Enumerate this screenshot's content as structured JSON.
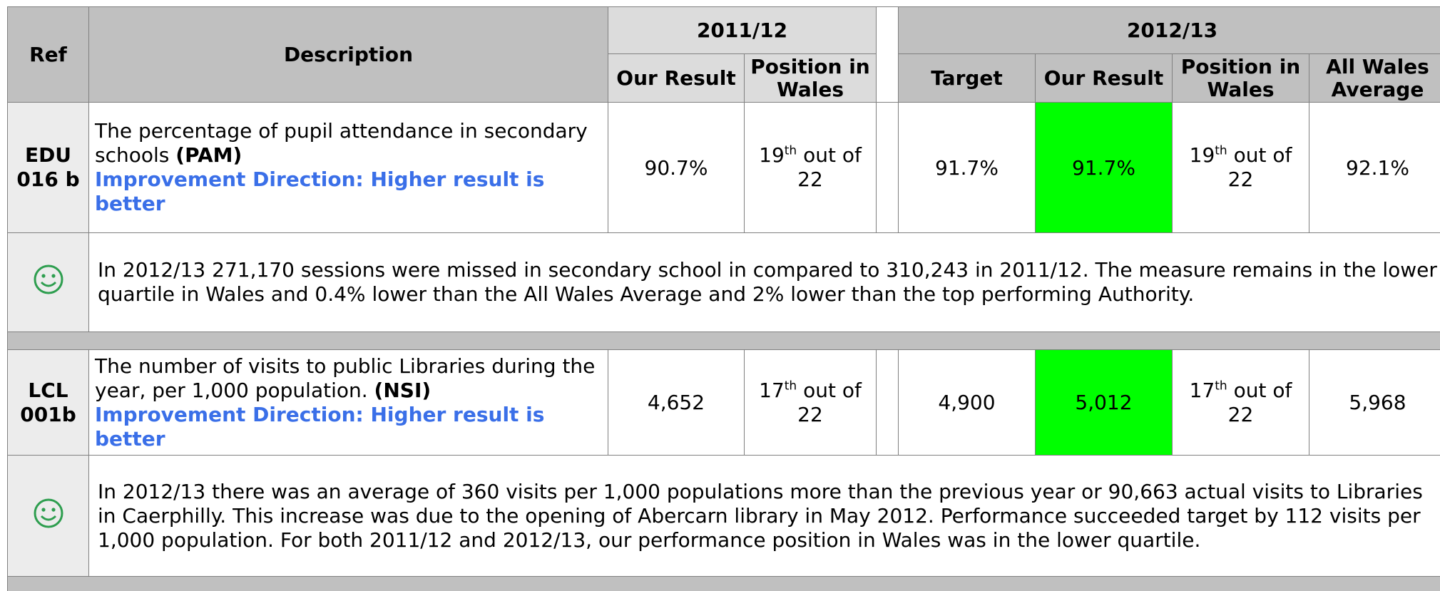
{
  "header": {
    "ref": "Ref",
    "description": "Description",
    "period1": {
      "label": "2011/12",
      "columns": [
        "Our Result",
        "Position in Wales"
      ]
    },
    "period2": {
      "label": "2012/13",
      "columns": [
        "Target",
        "Our Result",
        "Position in Wales",
        "All Wales Average"
      ]
    }
  },
  "rows": [
    {
      "ref": "EDU 016 b",
      "description": "The percentage of pupil attendance in secondary schools",
      "code": "(PAM)",
      "direction": "Improvement Direction: Higher result is better",
      "result_2011": "90.7%",
      "position_2011": {
        "rank": "19",
        "suffix": "th",
        "rest": "out of 22"
      },
      "target_2012": "91.7%",
      "result_2012": "91.7%",
      "position_2012": {
        "rank": "19",
        "suffix": "th",
        "rest": "out of 22"
      },
      "wales_average": "92.1%",
      "comment": "In 2012/13 271,170 sessions were missed in secondary school in compared to 310,243 in 2011/12. The measure remains in the lower quartile in Wales and 0.4% lower than the All Wales Average and 2% lower than the top performing Authority."
    },
    {
      "ref": "LCL 001b",
      "description": "The number of visits to public Libraries during the year, per 1,000 population.",
      "code": "(NSI)",
      "direction": "Improvement Direction: Higher result is better",
      "result_2011": "4,652",
      "position_2011": {
        "rank": "17",
        "suffix": "th",
        "rest": "out of 22"
      },
      "target_2012": "4,900",
      "result_2012": "5,012",
      "position_2012": {
        "rank": "17",
        "suffix": "th",
        "rest": "out of 22"
      },
      "wales_average": "5,968",
      "comment": "In 2012/13 there was an average of 360 visits per 1,000 populations more than the previous year or 90,663 actual visits to Libraries in Caerphilly. This increase was due to the opening of Abercarn library in May 2012. Performance succeeded target by 112 visits per 1,000 population. For both 2011/12 and 2012/13, our performance position in Wales was in the lower quartile."
    }
  ]
}
